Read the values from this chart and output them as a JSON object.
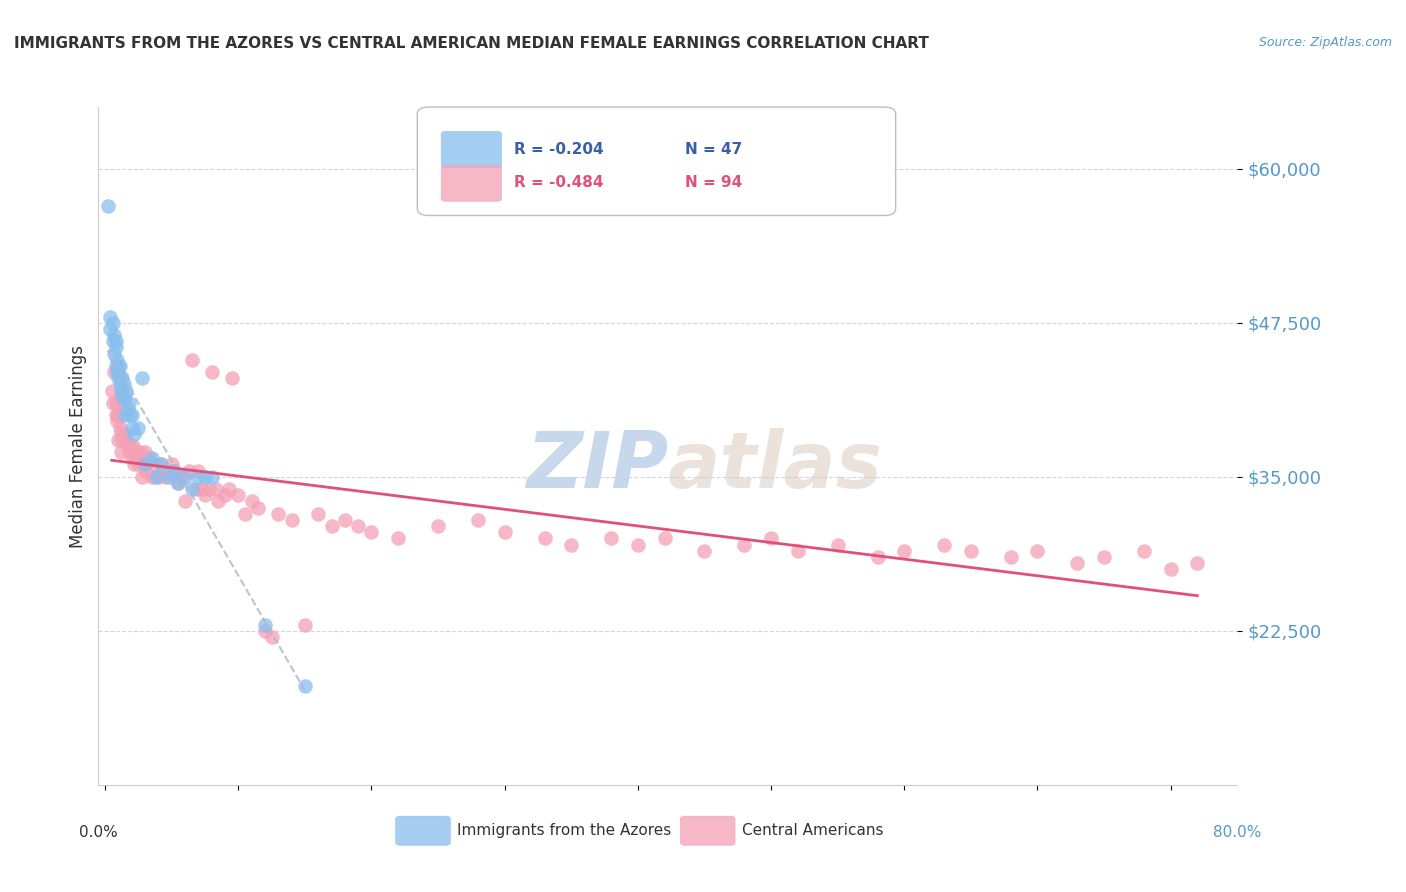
{
  "title": "IMMIGRANTS FROM THE AZORES VS CENTRAL AMERICAN MEDIAN FEMALE EARNINGS CORRELATION CHART",
  "source": "Source: ZipAtlas.com",
  "ylabel": "Median Female Earnings",
  "ytick_labels": [
    "$22,500",
    "$35,000",
    "$47,500",
    "$60,000"
  ],
  "ytick_values": [
    22500,
    35000,
    47500,
    60000
  ],
  "ymin": 10000,
  "ymax": 65000,
  "xmin": -0.005,
  "xmax": 0.85,
  "legend_blue_r": "R = -0.204",
  "legend_blue_n": "N = 47",
  "legend_pink_r": "R = -0.484",
  "legend_pink_n": "N = 94",
  "legend_blue_label": "Immigrants from the Azores",
  "legend_pink_label": "Central Americans",
  "blue_color": "#87BEEE",
  "pink_color": "#F4A0B5",
  "blue_line_color": "#3A5EA8",
  "pink_line_color": "#E0507A",
  "watermark_color": "#C8D8EC",
  "background_color": "#FFFFFF",
  "title_color": "#333333",
  "axis_label_color": "#5599CC",
  "grid_color": "#CCCCCC",
  "blue_scatter_x": [
    0.002,
    0.004,
    0.004,
    0.006,
    0.006,
    0.007,
    0.007,
    0.008,
    0.008,
    0.008,
    0.009,
    0.009,
    0.01,
    0.01,
    0.01,
    0.011,
    0.011,
    0.012,
    0.012,
    0.013,
    0.013,
    0.014,
    0.015,
    0.015,
    0.016,
    0.017,
    0.018,
    0.019,
    0.02,
    0.02,
    0.022,
    0.025,
    0.028,
    0.03,
    0.035,
    0.038,
    0.042,
    0.048,
    0.052,
    0.055,
    0.06,
    0.065,
    0.07,
    0.075,
    0.08,
    0.12,
    0.15
  ],
  "blue_scatter_y": [
    57000,
    47000,
    48000,
    46000,
    47500,
    45000,
    46500,
    44000,
    45500,
    46000,
    43500,
    44500,
    43000,
    44000,
    43500,
    42500,
    44000,
    42000,
    43000,
    41500,
    43000,
    42500,
    40000,
    41500,
    42000,
    40500,
    41000,
    40000,
    39000,
    40000,
    38500,
    39000,
    43000,
    36000,
    36500,
    35000,
    36000,
    35000,
    35500,
    34500,
    35000,
    34000,
    35000,
    35000,
    35000,
    23000,
    18000
  ],
  "pink_scatter_x": [
    0.005,
    0.006,
    0.007,
    0.008,
    0.008,
    0.009,
    0.01,
    0.01,
    0.011,
    0.012,
    0.012,
    0.013,
    0.014,
    0.015,
    0.016,
    0.017,
    0.018,
    0.019,
    0.02,
    0.021,
    0.022,
    0.023,
    0.024,
    0.025,
    0.026,
    0.027,
    0.028,
    0.029,
    0.03,
    0.031,
    0.033,
    0.035,
    0.037,
    0.04,
    0.042,
    0.045,
    0.048,
    0.05,
    0.052,
    0.055,
    0.058,
    0.06,
    0.063,
    0.065,
    0.068,
    0.07,
    0.073,
    0.075,
    0.078,
    0.08,
    0.083,
    0.085,
    0.09,
    0.093,
    0.095,
    0.1,
    0.105,
    0.11,
    0.115,
    0.12,
    0.125,
    0.13,
    0.14,
    0.15,
    0.16,
    0.17,
    0.18,
    0.19,
    0.2,
    0.22,
    0.25,
    0.28,
    0.3,
    0.33,
    0.35,
    0.38,
    0.4,
    0.42,
    0.45,
    0.48,
    0.5,
    0.52,
    0.55,
    0.58,
    0.6,
    0.63,
    0.65,
    0.68,
    0.7,
    0.73,
    0.75,
    0.78,
    0.8,
    0.82
  ],
  "pink_scatter_y": [
    42000,
    41000,
    43500,
    40000,
    41000,
    39500,
    40000,
    38000,
    39000,
    38500,
    37000,
    38000,
    41000,
    38500,
    38000,
    37500,
    37000,
    37500,
    36500,
    37500,
    36000,
    37000,
    36500,
    36000,
    37000,
    36500,
    35000,
    36000,
    37000,
    35500,
    36500,
    35000,
    36000,
    35000,
    36000,
    35000,
    35500,
    36000,
    35500,
    34500,
    35000,
    33000,
    35500,
    44500,
    34000,
    35500,
    34000,
    33500,
    34000,
    43500,
    34000,
    33000,
    33500,
    34000,
    43000,
    33500,
    32000,
    33000,
    32500,
    22500,
    22000,
    32000,
    31500,
    23000,
    32000,
    31000,
    31500,
    31000,
    30500,
    30000,
    31000,
    31500,
    30500,
    30000,
    29500,
    30000,
    29500,
    30000,
    29000,
    29500,
    30000,
    29000,
    29500,
    28500,
    29000,
    29500,
    29000,
    28500,
    29000,
    28000,
    28500,
    29000,
    27500,
    28000
  ]
}
